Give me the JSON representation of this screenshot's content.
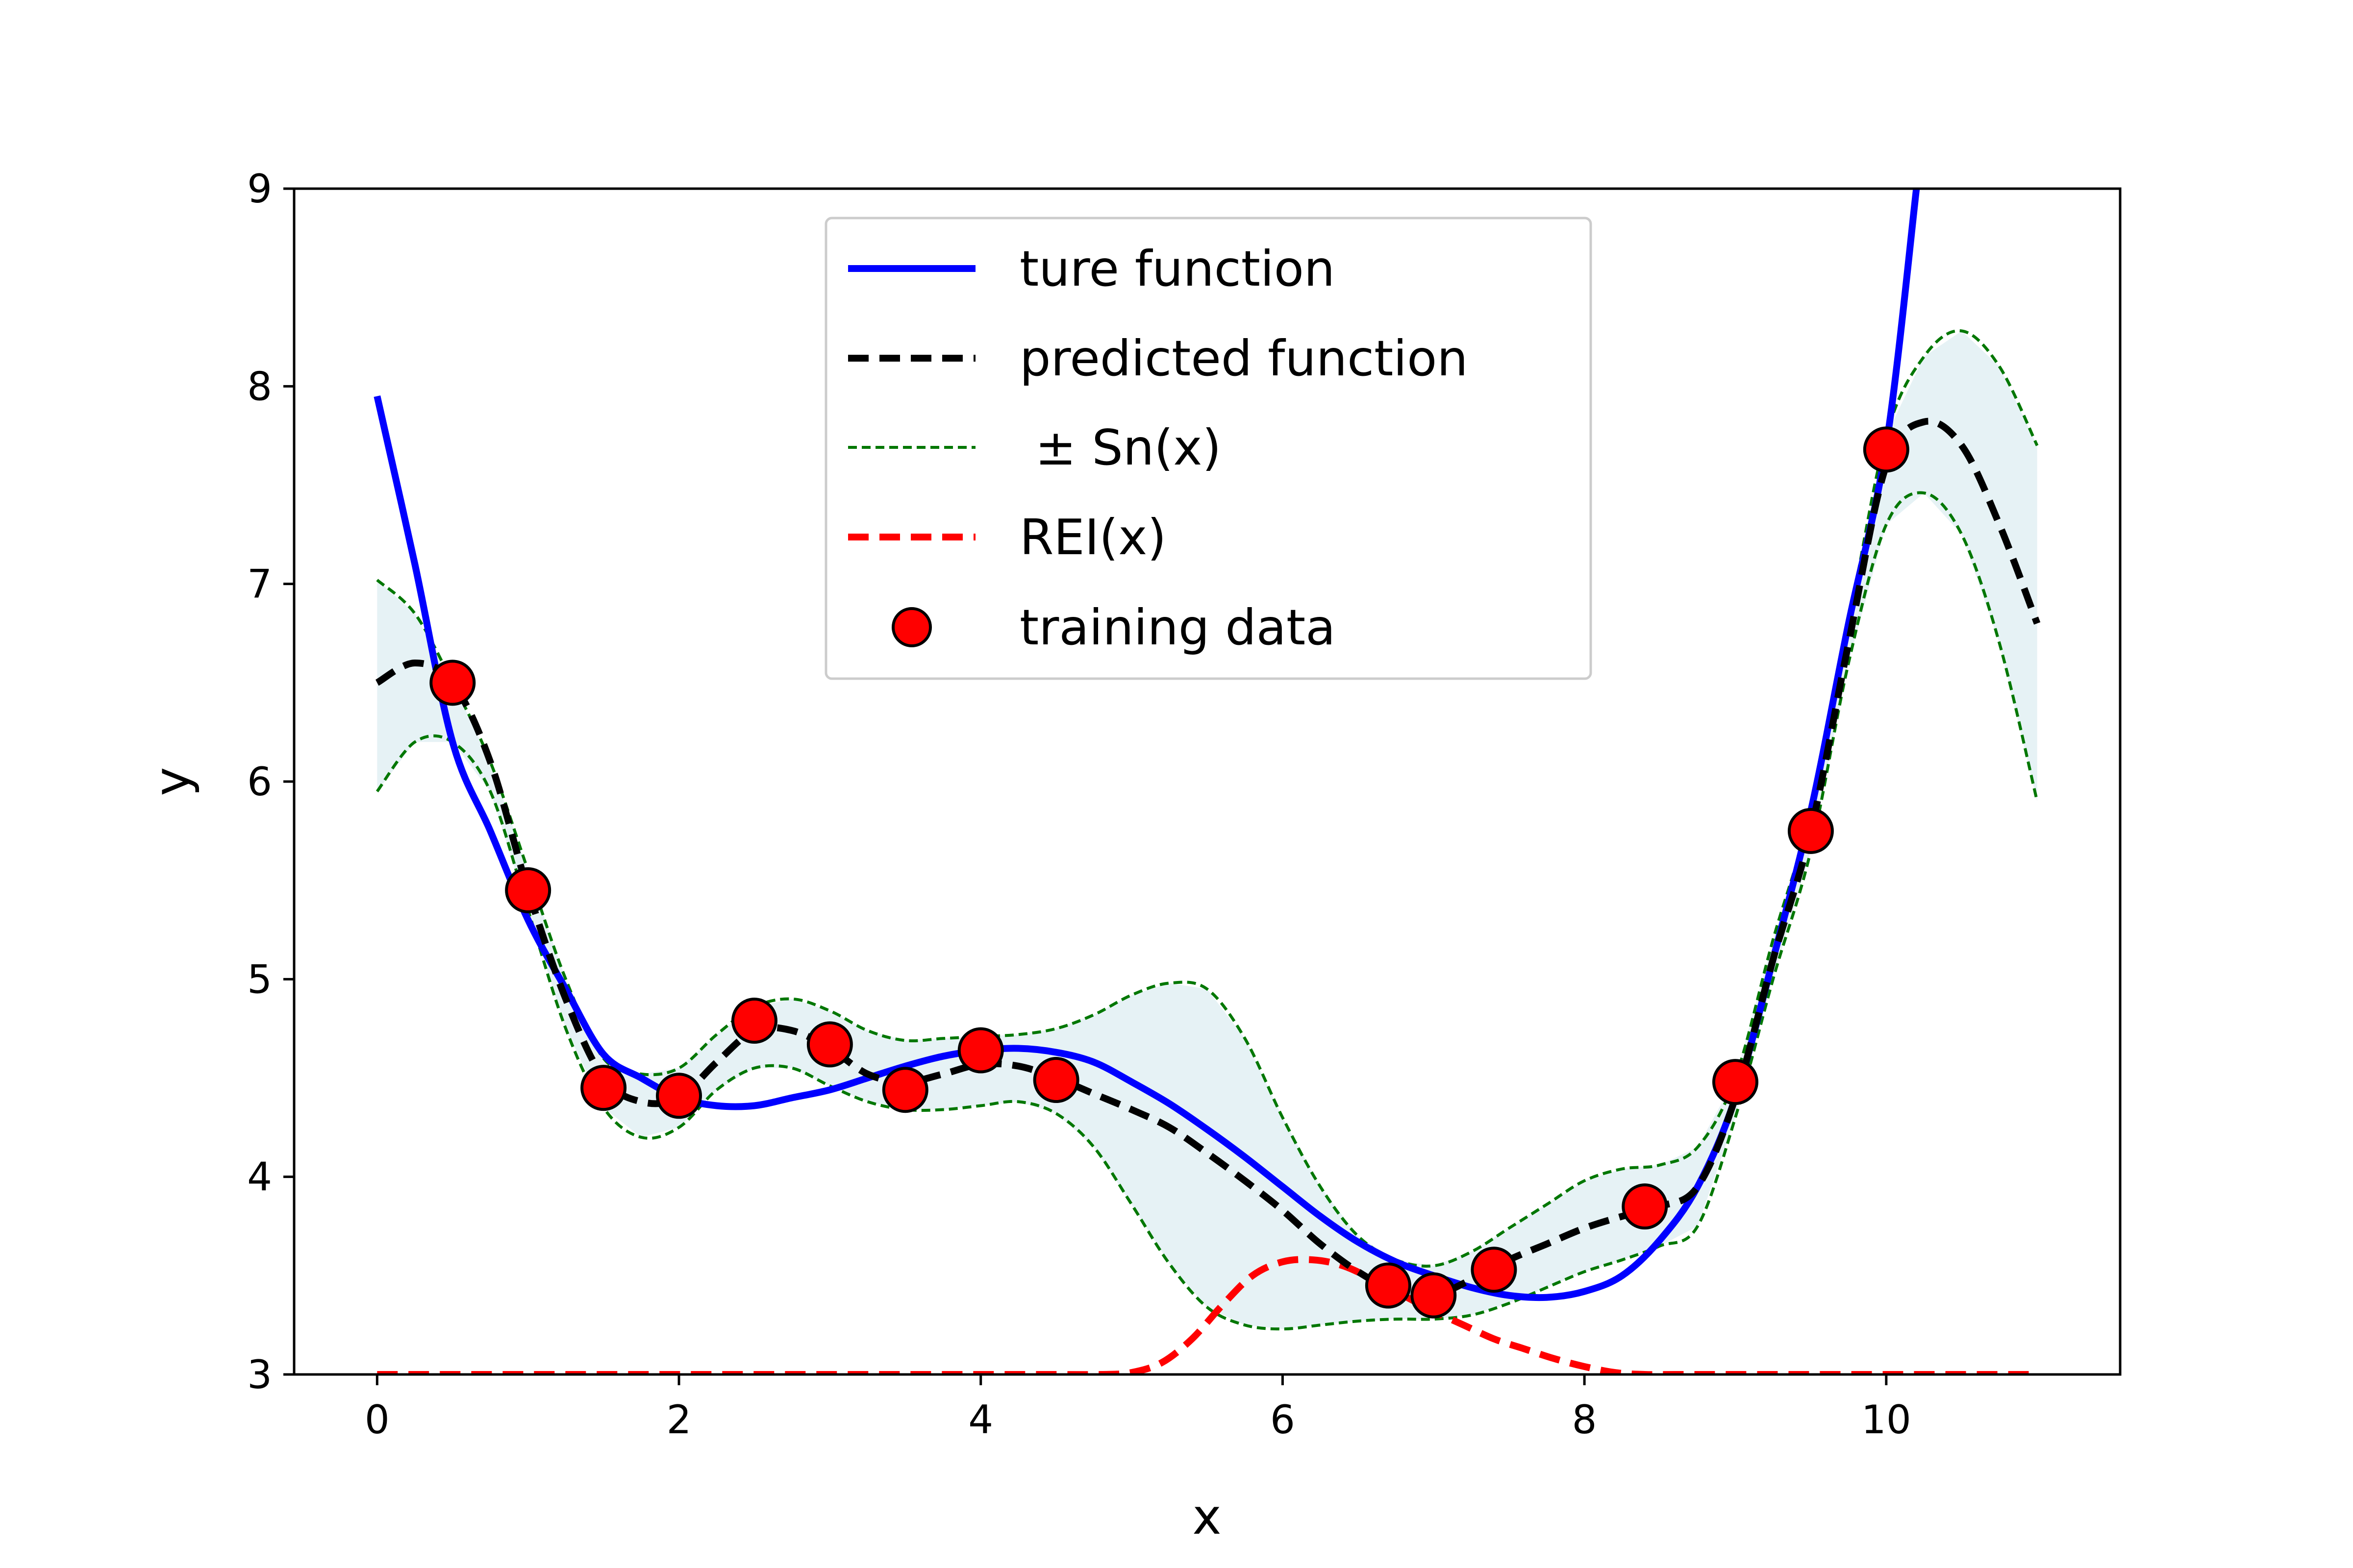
{
  "chart_data": {
    "type": "line",
    "xlabel": "x",
    "ylabel": "y",
    "xlim": [
      -0.55,
      11.55
    ],
    "ylim": [
      3,
      9
    ],
    "xticks": [
      0,
      2,
      4,
      6,
      8,
      10
    ],
    "yticks": [
      3,
      4,
      5,
      6,
      7,
      8,
      9
    ],
    "grid": false,
    "legend_position": "top-center",
    "legend": [
      "ture function",
      "predicted function",
      " ± Sn(x)",
      "REI(x)",
      "training data"
    ],
    "colors": {
      "true": "#0000ff",
      "predicted": "#000000",
      "band": "#007700",
      "band_fill": "#e6f2f5",
      "rei": "#ff0000",
      "points": "#ff0000"
    },
    "series": [
      {
        "name": "ture function",
        "x": [
          0,
          0.25,
          0.5,
          0.75,
          1,
          1.25,
          1.5,
          1.75,
          2,
          2.25,
          2.5,
          2.75,
          3,
          3.25,
          3.5,
          3.75,
          4,
          4.25,
          4.5,
          4.75,
          5,
          5.25,
          5.5,
          5.75,
          6,
          6.25,
          6.5,
          6.75,
          7,
          7.25,
          7.5,
          7.75,
          8,
          8.25,
          8.5,
          8.75,
          9,
          9.25,
          9.5,
          9.75,
          10,
          10.2
        ],
        "y": [
          7.95,
          7.1,
          6.2,
          5.75,
          5.3,
          4.95,
          4.62,
          4.5,
          4.4,
          4.36,
          4.36,
          4.4,
          4.44,
          4.5,
          4.56,
          4.61,
          4.64,
          4.65,
          4.63,
          4.58,
          4.48,
          4.37,
          4.24,
          4.1,
          3.95,
          3.8,
          3.67,
          3.57,
          3.5,
          3.44,
          3.4,
          3.39,
          3.42,
          3.5,
          3.68,
          3.95,
          4.4,
          5.1,
          5.85,
          6.8,
          7.7,
          9.0
        ]
      },
      {
        "name": "predicted function",
        "x": [
          0,
          0.25,
          0.5,
          0.75,
          1,
          1.25,
          1.5,
          1.75,
          2,
          2.25,
          2.5,
          2.75,
          3,
          3.25,
          3.5,
          3.75,
          4,
          4.25,
          4.5,
          4.75,
          5,
          5.25,
          5.5,
          5.75,
          6,
          6.25,
          6.5,
          6.75,
          7,
          7.25,
          7.5,
          7.75,
          8,
          8.25,
          8.5,
          8.75,
          9,
          9.25,
          9.5,
          9.75,
          10,
          10.25,
          10.5,
          10.75,
          11
        ],
        "y": [
          6.5,
          6.6,
          6.5,
          6.1,
          5.45,
          4.9,
          4.5,
          4.38,
          4.4,
          4.58,
          4.74,
          4.74,
          4.65,
          4.52,
          4.48,
          4.52,
          4.57,
          4.56,
          4.5,
          4.42,
          4.34,
          4.25,
          4.12,
          3.98,
          3.83,
          3.66,
          3.52,
          3.42,
          3.4,
          3.48,
          3.58,
          3.66,
          3.74,
          3.8,
          3.85,
          3.95,
          4.4,
          5.1,
          5.75,
          6.7,
          7.6,
          7.82,
          7.7,
          7.3,
          6.8
        ]
      },
      {
        "name": " ± Sn(x) upper",
        "x": [
          0,
          0.25,
          0.5,
          0.75,
          1,
          1.25,
          1.5,
          1.75,
          2,
          2.25,
          2.5,
          2.75,
          3,
          3.25,
          3.5,
          3.75,
          4,
          4.25,
          4.5,
          4.75,
          5,
          5.25,
          5.5,
          5.75,
          6,
          6.25,
          6.5,
          6.75,
          7,
          7.25,
          7.5,
          7.75,
          8,
          8.25,
          8.5,
          8.75,
          9,
          9.25,
          9.5,
          9.75,
          10,
          10.25,
          10.5,
          10.75,
          11
        ],
        "y": [
          7.02,
          6.85,
          6.5,
          6.1,
          5.55,
          5.0,
          4.6,
          4.52,
          4.55,
          4.72,
          4.86,
          4.9,
          4.84,
          4.74,
          4.69,
          4.7,
          4.71,
          4.72,
          4.75,
          4.82,
          4.92,
          4.98,
          4.95,
          4.7,
          4.3,
          3.95,
          3.7,
          3.58,
          3.55,
          3.62,
          3.74,
          3.86,
          3.98,
          4.04,
          4.06,
          4.15,
          4.5,
          5.2,
          5.85,
          6.8,
          7.75,
          8.15,
          8.28,
          8.1,
          7.7
        ]
      },
      {
        "name": " ± Sn(x) lower",
        "x": [
          0,
          0.25,
          0.5,
          0.75,
          1,
          1.25,
          1.5,
          1.75,
          2,
          2.25,
          2.5,
          2.75,
          3,
          3.25,
          3.5,
          3.75,
          4,
          4.25,
          4.5,
          4.75,
          5,
          5.25,
          5.5,
          5.75,
          6,
          6.25,
          6.5,
          6.75,
          7,
          7.25,
          7.5,
          7.75,
          8,
          8.25,
          8.5,
          8.75,
          9,
          9.25,
          9.5,
          9.75,
          10,
          10.25,
          10.5,
          10.75,
          11
        ],
        "y": [
          5.95,
          6.2,
          6.2,
          5.95,
          5.35,
          4.75,
          4.35,
          4.2,
          4.25,
          4.44,
          4.55,
          4.55,
          4.46,
          4.38,
          4.34,
          4.34,
          4.36,
          4.38,
          4.32,
          4.15,
          3.86,
          3.56,
          3.34,
          3.25,
          3.23,
          3.25,
          3.27,
          3.28,
          3.28,
          3.3,
          3.36,
          3.44,
          3.52,
          3.58,
          3.65,
          3.75,
          4.3,
          5.0,
          5.65,
          6.6,
          7.3,
          7.46,
          7.25,
          6.7,
          5.9
        ]
      },
      {
        "name": "REI(x)",
        "x": [
          0,
          1,
          2,
          3,
          4,
          4.5,
          4.8,
          5.0,
          5.2,
          5.4,
          5.6,
          5.8,
          6.0,
          6.2,
          6.4,
          6.6,
          6.8,
          7.0,
          7.2,
          7.4,
          7.6,
          7.8,
          8.0,
          8.2,
          8.4,
          8.6,
          9,
          10,
          11
        ],
        "y": [
          3.0,
          3.0,
          3.0,
          3.0,
          3.0,
          3.0,
          3.0,
          3.01,
          3.06,
          3.18,
          3.35,
          3.5,
          3.57,
          3.58,
          3.55,
          3.48,
          3.4,
          3.32,
          3.25,
          3.18,
          3.13,
          3.08,
          3.04,
          3.01,
          3.0,
          3.0,
          3.0,
          3.0,
          3.0
        ]
      }
    ],
    "training_data": {
      "name": "training data",
      "x": [
        0.5,
        1.0,
        1.5,
        2.0,
        2.5,
        3.0,
        3.5,
        4.0,
        4.5,
        6.7,
        7.0,
        7.4,
        8.4,
        9.0,
        9.5,
        10.0
      ],
      "y": [
        6.5,
        5.45,
        4.45,
        4.41,
        4.79,
        4.67,
        4.44,
        4.64,
        4.49,
        3.45,
        3.4,
        3.53,
        3.85,
        4.48,
        5.75,
        7.68
      ]
    }
  }
}
